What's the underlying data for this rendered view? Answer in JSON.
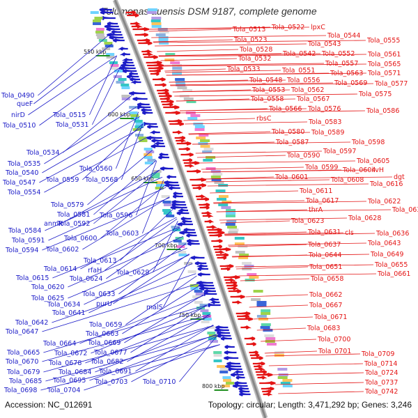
{
  "title": "Tolumonas auensis DSM 9187, complete genome",
  "footer": {
    "accession": "Accession: NC_012691",
    "summary": "Topology: circular; Length: 3,471,292 bp; Genes: 3,246"
  },
  "colors": {
    "minus": "#1c1cc8",
    "plus": "#e41414",
    "backbone": "#888888",
    "tick": "#1f8f1f"
  },
  "scale_ticks": [
    "550 kbp",
    "600 kbp",
    "650 kbp",
    "700 kbp",
    "750 kbp",
    "800 kbp"
  ],
  "minus_strand_labels": [
    "Tola_0490",
    "queF",
    "nirD",
    "Tola_0510",
    "Tola_0515",
    "Tola_0531",
    "Tola_0534",
    "Tola_0535",
    "Tola_0540",
    "Tola_0547",
    "Tola_0554",
    "Tola_0559",
    "Tola_0560",
    "Tola_0568",
    "Tola_0579",
    "Tola_0581",
    "anmK",
    "Tola_0592",
    "Tola_0596",
    "Tola_0584",
    "Tola_0591",
    "Tola_0600",
    "Tola_0603",
    "Tola_0594",
    "Tola_0602",
    "Tola_0613",
    "Tola_0614",
    "rfaH",
    "Tola_0615",
    "Tola_0624",
    "Tola_0629",
    "Tola_0620",
    "Tola_0633",
    "Tola_0625",
    "Tola_0634",
    "purU",
    "Tola_0641",
    "malS",
    "Tola_0642",
    "Tola_0659",
    "Tola_0647",
    "Tola_0663",
    "Tola_0664",
    "Tola_0669",
    "Tola_0665",
    "Tola_0672",
    "Tola_0677",
    "Tola_0670",
    "Tola_0678",
    "Tola_0682",
    "Tola_0679",
    "Tola_0684",
    "Tola_0691",
    "Tola_0685",
    "Tola_0695",
    "Tola_0698",
    "Tola_0704",
    "Tola_0703",
    "Tola_0710"
  ],
  "plus_strand_labels": [
    "Tola_0513",
    "Tola_0522",
    "lpxC",
    "Tola_0523",
    "Tola_0544",
    "Tola_0555",
    "Tola_0528",
    "Tola_0543",
    "Tola_0532",
    "Tola_0542",
    "Tola_0552",
    "Tola_0561",
    "Tola_0533",
    "Tola_0557",
    "Tola_0565",
    "Tola_0551",
    "Tola_0563",
    "Tola_0571",
    "Tola_0548",
    "Tola_0556",
    "Tola_0569",
    "Tola_0577",
    "Tola_0553",
    "Tola_0562",
    "Tola_0575",
    "Tola_0558",
    "Tola_0567",
    "Tola_0566",
    "Tola_0576",
    "Tola_0586",
    "rbsC",
    "Tola_0583",
    "Tola_0580",
    "Tola_0589",
    "Tola_0587",
    "Tola_0598",
    "Tola_0590",
    "Tola_0597",
    "Tola_0605",
    "Tola_0599",
    "Tola_0604",
    "ilvH",
    "Tola_0601",
    "Tola_0608",
    "Tola_0616",
    "dgt",
    "Tola_0611",
    "Tola_0617",
    "Tola_0622",
    "thrA",
    "Tola_0630",
    "Tola_0623",
    "Tola_0628",
    "Tola_0631",
    "cls",
    "Tola_0636",
    "Tola_0637",
    "Tola_0643",
    "Tola_0644",
    "Tola_0649",
    "Tola_0651",
    "Tola_0655",
    "Tola_0658",
    "Tola_0661",
    "Tola_0662",
    "Tola_0667",
    "Tola_0671",
    "Tola_0683",
    "Tola_0700",
    "Tola_0701",
    "Tola_0709",
    "Tola_0714",
    "Tola_0724",
    "Tola_0737",
    "Tola_0742"
  ]
}
